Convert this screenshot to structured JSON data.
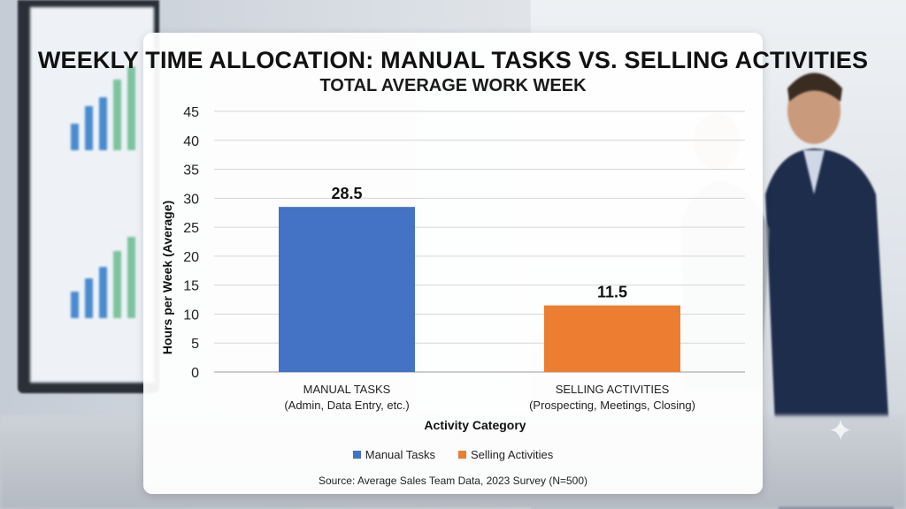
{
  "chart_data": {
    "type": "bar",
    "title": "WEEKLY TIME ALLOCATION: MANUAL TASKS VS. SELLING ACTIVITIES",
    "subtitle": "TOTAL AVERAGE WORK WEEK",
    "categories": [
      {
        "line1": "MANUAL TASKS",
        "line2": "(Admin, Data Entry, etc.)"
      },
      {
        "line1": "SELLING ACTIVITIES",
        "line2": "(Prospecting, Meetings, Closing)"
      }
    ],
    "values": [
      28.5,
      11.5
    ],
    "data_labels": [
      "28.5",
      "11.5"
    ],
    "colors": [
      "#4472c4",
      "#ed7d31"
    ],
    "xlabel": "Activity Category",
    "ylabel": "Hours per Week (Average)",
    "ylim": [
      0,
      45
    ],
    "yticks": [
      0,
      5,
      10,
      15,
      20,
      25,
      30,
      35,
      40,
      45
    ],
    "grid": true,
    "legend": {
      "placement": "bottom",
      "entries": [
        {
          "name": "Manual Tasks",
          "color": "#4472c4"
        },
        {
          "name": "Selling Activities",
          "color": "#ed7d31"
        }
      ]
    },
    "source": "Source: Average Sales Team Data, 2023 Survey (N=500)"
  }
}
